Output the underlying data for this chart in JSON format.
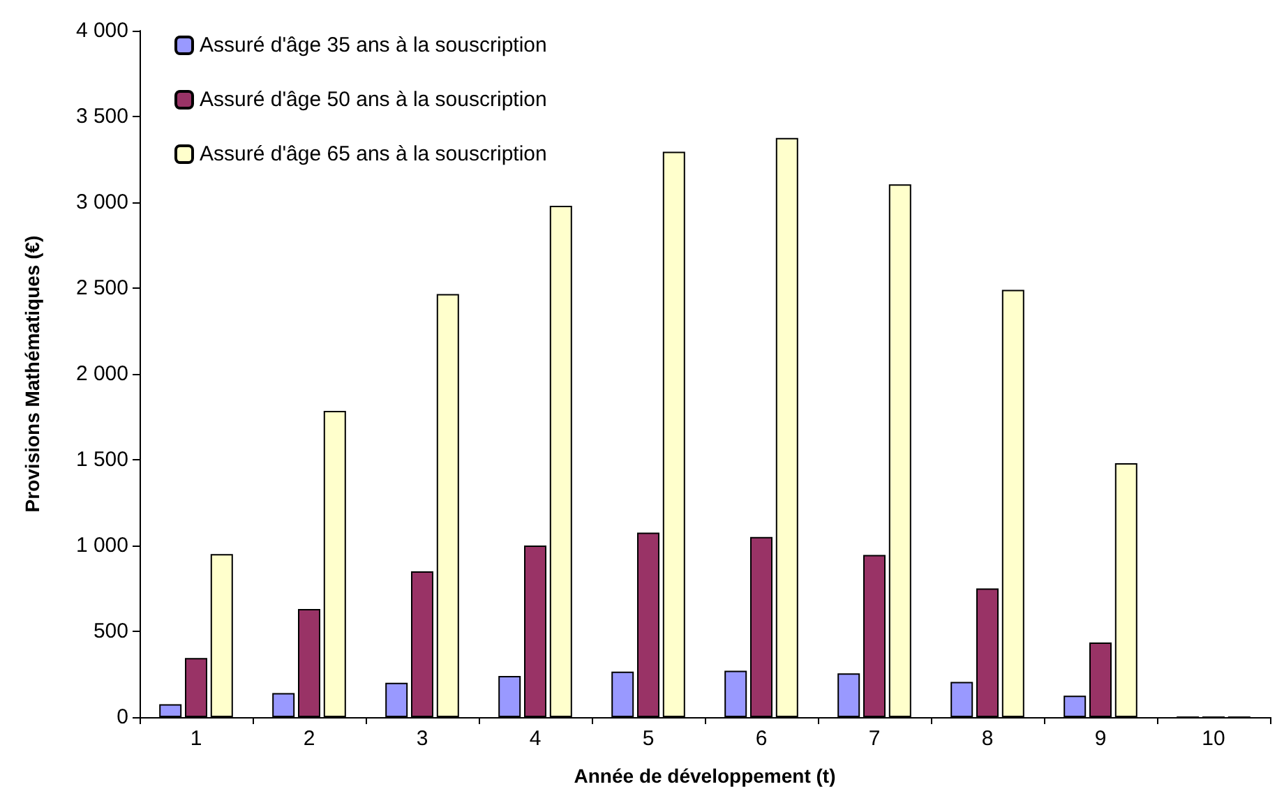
{
  "chart_data": {
    "type": "bar",
    "xlabel": "Année de développement (t)",
    "ylabel": "Provisions Mathématiques (€)",
    "categories": [
      "1",
      "2",
      "3",
      "4",
      "5",
      "6",
      "7",
      "8",
      "9",
      "10"
    ],
    "series": [
      {
        "name": "Assuré d'âge 35 ans à la souscription",
        "color": "#9999ff",
        "values": [
          75,
          140,
          200,
          240,
          265,
          270,
          255,
          205,
          125,
          0
        ]
      },
      {
        "name": "Assuré d'âge 50 ans à la souscription",
        "color": "#993366",
        "values": [
          345,
          630,
          850,
          1000,
          1075,
          1050,
          945,
          750,
          435,
          0
        ]
      },
      {
        "name": "Assuré d'âge 65 ans à la souscription",
        "color": "#ffffcc",
        "values": [
          950,
          1785,
          2465,
          2980,
          3295,
          3375,
          3105,
          2490,
          1480,
          0
        ]
      }
    ],
    "ylim": [
      0,
      4000
    ],
    "yticks": [
      0,
      500,
      1000,
      1500,
      2000,
      2500,
      3000,
      3500,
      4000
    ],
    "grid": false,
    "legend": "top left"
  }
}
